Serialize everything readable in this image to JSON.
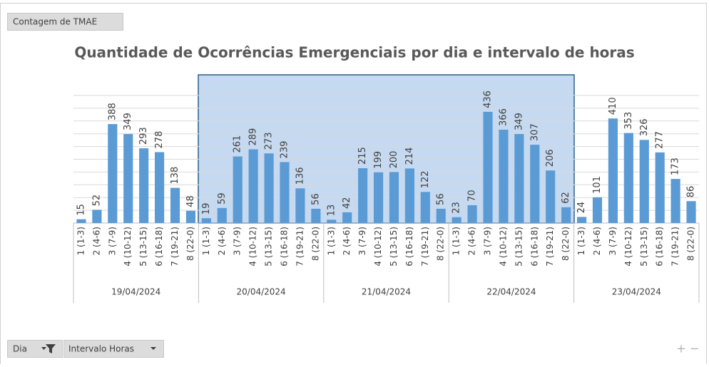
{
  "chart_data": {
    "type": "bar",
    "title": "Quantidade de Ocorrências Emergenciais por dia e intervalo de horas",
    "groups": [
      "19/04/2024",
      "20/04/2024",
      "21/04/2024",
      "22/04/2024",
      "23/04/2024"
    ],
    "categories": [
      "1 (1-3)",
      "2 (4-6)",
      "3 (7-9)",
      "4 (10-12)",
      "5 (13-15)",
      "6 (16-18)",
      "7 (19-21)",
      "8 (22-0)",
      "1 (1-3)",
      "2 (4-6)",
      "3 (7-9)",
      "4 (10-12)",
      "5 (13-15)",
      "6 (16-18)",
      "7 (19-21)",
      "8 (22-0)",
      "1 (1-3)",
      "2 (4-6)",
      "3 (7-9)",
      "4 (10-12)",
      "5 (13-15)",
      "6 (16-18)",
      "7 (19-21)",
      "8 (22-0)",
      "1 (1-3)",
      "2 (4-6)",
      "3 (7-9)",
      "4 (10-12)",
      "5 (13-15)",
      "6 (16-18)",
      "7 (19-21)",
      "8 (22-0)",
      "1 (1-3)",
      "2 (4-6)",
      "3 (7-9)",
      "4 (10-12)",
      "5 (13-15)",
      "6 (16-18)",
      "7 (19-21)",
      "8 (22-0)"
    ],
    "values": [
      15,
      52,
      388,
      349,
      293,
      278,
      138,
      48,
      19,
      59,
      261,
      289,
      273,
      239,
      136,
      56,
      13,
      42,
      215,
      199,
      200,
      214,
      122,
      56,
      23,
      70,
      436,
      366,
      349,
      307,
      206,
      62,
      24,
      101,
      410,
      353,
      326,
      277,
      173,
      86
    ],
    "color": "#5b9bd5",
    "ylim": [
      0,
      500
    ],
    "yticks": [
      0,
      50,
      100,
      150,
      200,
      250,
      300,
      350,
      400,
      450,
      500
    ],
    "grid": true,
    "ytick_labels": false
  },
  "field_buttons": {
    "value_field": "Contagem de TMAE",
    "axis_fields": [
      "Dia",
      "Intervalo Horas"
    ]
  },
  "zoom": [
    "+",
    "−"
  ]
}
